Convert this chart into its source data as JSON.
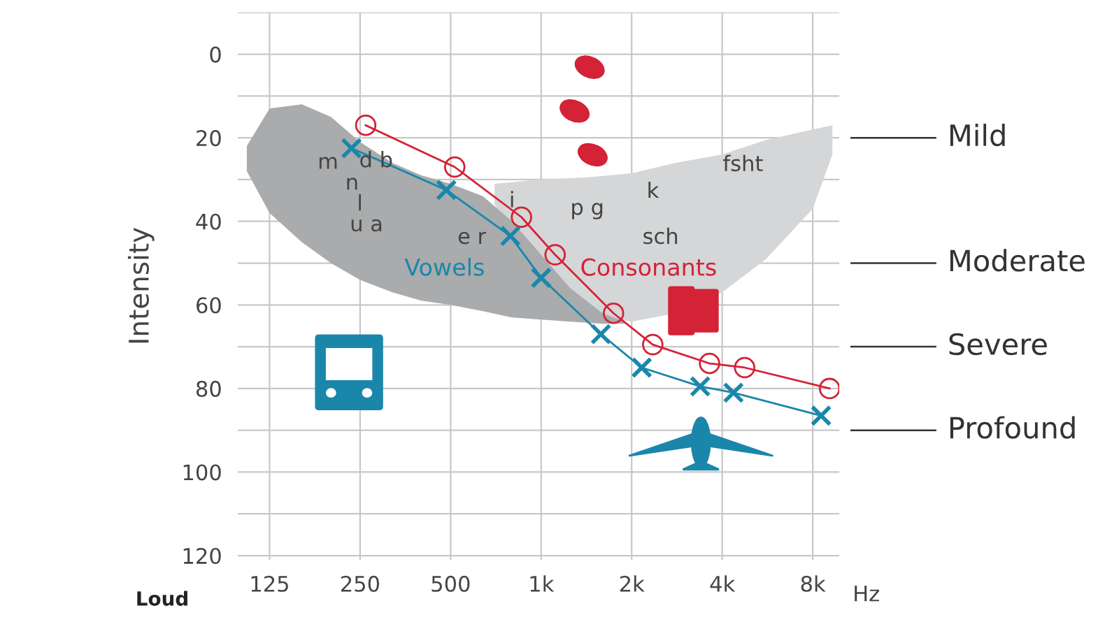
{
  "chart_data": {
    "type": "line",
    "ylabel": "Intensity",
    "xlabel": "Hz",
    "xlim": [
      98,
      9800
    ],
    "ylim": [
      121,
      -10
    ],
    "xticks": [
      {
        "value": 125,
        "label": "125"
      },
      {
        "value": 250,
        "label": "250"
      },
      {
        "value": 500,
        "label": "500"
      },
      {
        "value": 1000,
        "label": "1k"
      },
      {
        "value": 2000,
        "label": "2k"
      },
      {
        "value": 4000,
        "label": "4k"
      },
      {
        "value": 8000,
        "label": "8k"
      }
    ],
    "yticks": [
      {
        "value": -10,
        "label": null
      },
      0,
      {
        "value": 10,
        "label": null
      },
      20,
      {
        "value": 30,
        "label": null
      },
      40,
      {
        "value": 50,
        "label": null
      },
      60,
      {
        "value": 70,
        "label": null
      },
      80,
      {
        "value": 90,
        "label": null
      },
      100,
      {
        "value": 110,
        "label": null
      },
      120
    ],
    "log": "x",
    "grid": true,
    "series": [
      {
        "marker": "circle",
        "color": "#d42236",
        "x": [
          261,
          516,
          860,
          1113,
          1740,
          2350,
          3630,
          4750,
          9100
        ],
        "values": [
          17,
          27,
          39,
          48,
          62,
          69.5,
          74,
          75,
          80
        ]
      },
      {
        "marker": "cross",
        "color": "#1a87aa",
        "x": [
          234,
          484,
          790,
          1000,
          1580,
          2160,
          3380,
          4360,
          8530
        ],
        "values": [
          22.5,
          32.5,
          43.5,
          53.5,
          67,
          75,
          79.5,
          81,
          86.5
        ]
      }
    ],
    "ref_lines": [
      {
        "axis": "y",
        "value": 20,
        "label": "Mild"
      },
      {
        "axis": "y",
        "value": 50,
        "label": "Moderate"
      },
      {
        "axis": "y",
        "value": 70,
        "label": "Severe"
      },
      {
        "axis": "y",
        "value": 90,
        "label": "Profound"
      }
    ],
    "annotations": [
      "m",
      "d b",
      "n",
      "l",
      "u a",
      "e r",
      "i",
      "p g",
      "k",
      "sch",
      "fsht",
      "Vowels",
      "Consonants",
      "Loud"
    ]
  }
}
